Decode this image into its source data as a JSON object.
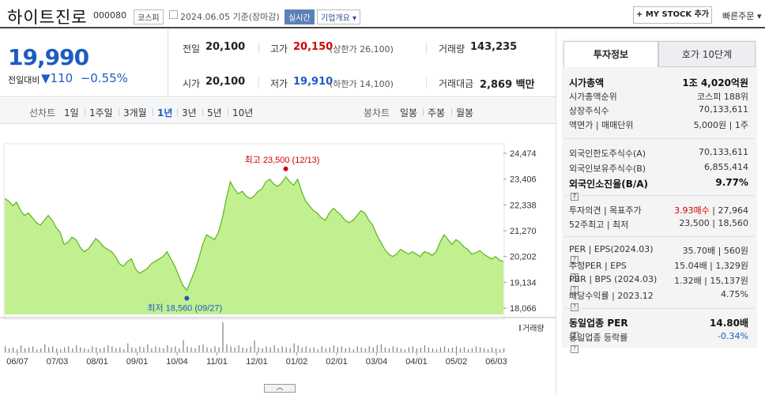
{
  "header": {
    "name": "하이트진로",
    "code": "000080",
    "market": "코스피",
    "date": "2024.06.05 기준(장마감)",
    "realtime": "실시간",
    "corp_overview": "기업개요",
    "my_stock": "+ MY STOCK 추가",
    "quick_order": "빠른주문"
  },
  "quote": {
    "price": "19,990",
    "change_label": "전일대비",
    "change": "▼110",
    "change_pct": "−0.55%",
    "prev_label": "전일",
    "prev": "20,100",
    "high_label": "고가",
    "high": "20,150",
    "upper_limit": "(상한가 26,100)",
    "volume_label": "거래량",
    "volume": "143,235",
    "open_label": "시가",
    "open": "20,100",
    "low_label": "저가",
    "low": "19,910",
    "lower_limit": "(하한가 14,100)",
    "amount_label": "거래대금",
    "amount": "2,869 백만"
  },
  "tabs": {
    "line_label": "선차트",
    "line": [
      "1일",
      "1주일",
      "3개월",
      "1년",
      "3년",
      "5년",
      "10년"
    ],
    "selected": "1년",
    "candle_label": "봉차트",
    "candle": [
      "일봉",
      "주봉",
      "월봉"
    ]
  },
  "chart_data": {
    "type": "area",
    "title": "",
    "ylim": [
      18066,
      24474
    ],
    "y_ticks": [
      "24,474",
      "23,406",
      "22,338",
      "21,270",
      "20,202",
      "19,134",
      "18,066"
    ],
    "x_ticks": [
      "06/07",
      "07/03",
      "08/01",
      "09/01",
      "10/04",
      "11/01",
      "12/01",
      "01/02",
      "02/01",
      "03/04",
      "04/01",
      "05/02",
      "06/03"
    ],
    "values": [
      22600,
      22500,
      22300,
      22450,
      22100,
      21900,
      22000,
      21800,
      21600,
      21500,
      21700,
      21900,
      21700,
      21400,
      21200,
      20700,
      20800,
      21000,
      20900,
      20600,
      20400,
      20500,
      20700,
      20950,
      20800,
      20600,
      20500,
      20400,
      20200,
      19900,
      19800,
      20000,
      20100,
      19700,
      19500,
      19600,
      19700,
      19900,
      20000,
      20100,
      20200,
      20400,
      20100,
      19800,
      19400,
      19000,
      18800,
      19200,
      19600,
      20100,
      20700,
      21100,
      21000,
      20900,
      21200,
      21800,
      22600,
      23300,
      23000,
      22800,
      22900,
      22700,
      22600,
      22700,
      22900,
      23000,
      23300,
      23400,
      23200,
      23100,
      23250,
      23500,
      23300,
      23150,
      23400,
      22900,
      22500,
      22300,
      22100,
      22000,
      21800,
      21700,
      22000,
      22200,
      22050,
      21900,
      21700,
      21600,
      21700,
      21900,
      22100,
      22000,
      21700,
      21500,
      21100,
      20800,
      20500,
      20300,
      20200,
      20300,
      20500,
      20400,
      20300,
      20400,
      20300,
      20200,
      20400,
      20350,
      20250,
      20400,
      20800,
      21100,
      20900,
      20700,
      20900,
      20800,
      20600,
      20500,
      20300,
      20350,
      20450,
      20300,
      20200,
      20100,
      20200,
      20050,
      20000
    ],
    "volume_values": [
      6,
      4,
      5,
      3,
      7,
      4,
      5,
      6,
      3,
      4,
      8,
      5,
      6,
      4,
      3,
      5,
      6,
      4,
      7,
      5,
      4,
      3,
      6,
      5,
      4,
      5,
      7,
      6,
      4,
      5,
      3,
      9,
      5,
      4,
      6,
      5,
      8,
      4,
      6,
      5,
      4,
      7,
      5,
      6,
      4,
      12,
      6,
      5,
      4,
      7,
      8,
      5,
      4,
      6,
      5,
      30,
      8,
      6,
      5,
      7,
      5,
      4,
      6,
      12,
      5,
      4,
      6,
      5,
      7,
      4,
      6,
      5,
      4,
      9,
      7,
      5,
      6,
      4,
      5,
      3,
      6,
      4,
      5,
      7,
      5,
      6,
      4,
      5,
      3,
      6,
      5,
      4,
      6,
      5,
      7,
      8,
      5,
      4,
      6,
      5,
      4,
      3,
      5,
      6,
      4,
      5,
      7,
      5,
      4,
      3,
      5,
      6,
      4,
      5,
      6,
      4,
      5,
      3,
      4,
      6,
      5,
      4,
      3,
      5,
      4,
      3,
      4
    ],
    "high_label": "최고 23,500 (12/13)",
    "low_label": "최저 18,560 (09/27)",
    "volume_legend": "거래량",
    "colors": {
      "area": "#b7ec7d",
      "line": "#5cb51d",
      "high": "#d40000",
      "low": "#1f5bc4",
      "bars": "#7a7f88"
    }
  },
  "invest": {
    "tab_active": "투자정보",
    "tab_other": "호가 10단계",
    "rows1": [
      {
        "label": "시가총액",
        "value": "1조 4,020억원",
        "bold": true
      },
      {
        "label": "시가총액순위",
        "value": "코스피 188위"
      },
      {
        "label": "상장주식수",
        "value": "70,133,611"
      },
      {
        "label": "액면가 | 매매단위",
        "value": "5,000원 | 1주"
      }
    ],
    "rows2": [
      {
        "label": "외국인한도주식수(A)",
        "value": "70,133,611"
      },
      {
        "label": "외국인보유주식수(B)",
        "value": "6,855,414"
      },
      {
        "label": "외국인소진율(B/A)",
        "value": "9.77%",
        "bold": true
      }
    ],
    "rows3": [
      {
        "label": "투자의견 | 목표주가",
        "value_red": "3.93매수",
        "value": " | 27,964"
      },
      {
        "label": "52주최고 | 최저",
        "value": "23,500 | 18,560"
      }
    ],
    "rows4": [
      {
        "label": "PER | EPS(2024.03)",
        "value": "35.70배 | 560원"
      },
      {
        "label": "추정PER | EPS",
        "value": "15.04배 | 1,329원"
      },
      {
        "label": "PBR | BPS (2024.03)",
        "value": "1.32배 | 15,137원"
      },
      {
        "label": "배당수익률 | 2023.12",
        "value": "4.75%"
      }
    ],
    "rows5": [
      {
        "label": "동일업종 PER",
        "value": "14.80배",
        "bold": true
      },
      {
        "label": "동일업종 등락률",
        "value": "-0.34%",
        "blue": true
      }
    ]
  }
}
